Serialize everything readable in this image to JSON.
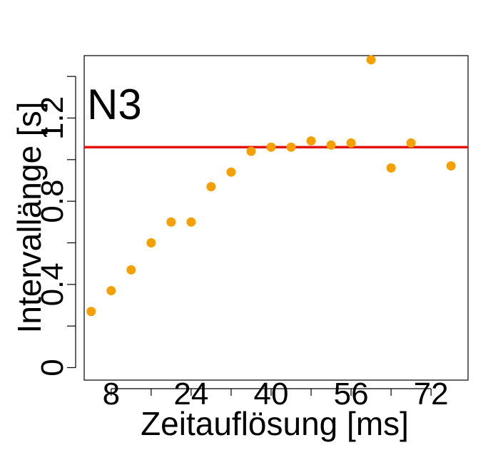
{
  "chart_data": {
    "type": "scatter",
    "panel_label": "N3",
    "xlabel": "Zeitauflösung [ms]",
    "ylabel": "Intervallänge [s]",
    "x_ticks": [
      8,
      16,
      24,
      32,
      40,
      48,
      56,
      64,
      72
    ],
    "x_tick_labels": [
      "8",
      "",
      "24",
      "",
      "40",
      "",
      "56",
      "",
      "72"
    ],
    "y_ticks": [
      0,
      0.2,
      0.4,
      0.6,
      0.8,
      1.0,
      1.2,
      1.4
    ],
    "y_tick_labels": [
      "0",
      "",
      "0.4",
      "",
      "0.8",
      "",
      "1.2",
      ""
    ],
    "xlim": [
      2.6,
      79.4
    ],
    "ylim": [
      -0.06,
      1.5
    ],
    "grid": false,
    "points": [
      {
        "x": 4,
        "y": 0.27
      },
      {
        "x": 8,
        "y": 0.37
      },
      {
        "x": 12,
        "y": 0.47
      },
      {
        "x": 16,
        "y": 0.6
      },
      {
        "x": 20,
        "y": 0.7
      },
      {
        "x": 24,
        "y": 0.7
      },
      {
        "x": 28,
        "y": 0.87
      },
      {
        "x": 32,
        "y": 0.94
      },
      {
        "x": 36,
        "y": 1.04
      },
      {
        "x": 40,
        "y": 1.06
      },
      {
        "x": 44,
        "y": 1.06
      },
      {
        "x": 48,
        "y": 1.09
      },
      {
        "x": 52,
        "y": 1.07
      },
      {
        "x": 56,
        "y": 1.08
      },
      {
        "x": 60,
        "y": 1.48
      },
      {
        "x": 64,
        "y": 0.96
      },
      {
        "x": 68,
        "y": 1.08
      },
      {
        "x": 76,
        "y": 0.97
      }
    ],
    "reference_line": {
      "y": 1.06,
      "color": "#e3120b"
    },
    "point_color": "#f5a000",
    "axis_color": "#000000"
  }
}
